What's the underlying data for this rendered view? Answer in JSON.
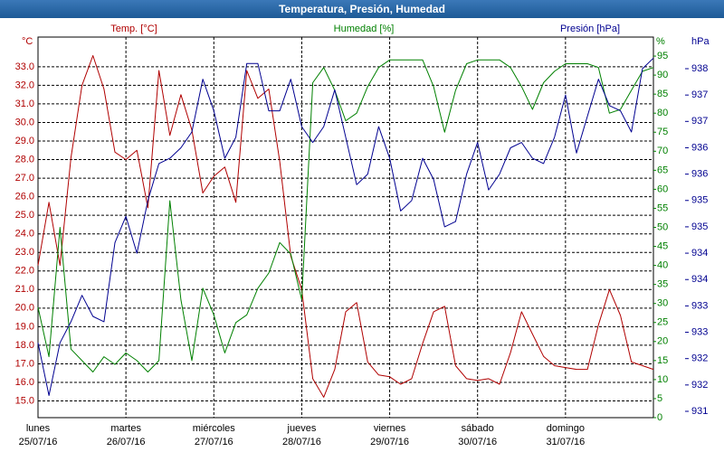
{
  "chart_data": {
    "type": "line",
    "title": "Temperatura, Presión, Humedad",
    "ylabel": "Temp. [°C]",
    "yunit": "°C",
    "y2label": "Humedad [%]",
    "y2unit": "%",
    "y3label": "Presión [hPa]",
    "y3unit": "hPa",
    "grid": true,
    "x": [
      0,
      0.125,
      0.25,
      0.375,
      0.5,
      0.625,
      0.75,
      0.875,
      1,
      1.125,
      1.25,
      1.375,
      1.5,
      1.625,
      1.75,
      1.875,
      2,
      2.125,
      2.25,
      2.375,
      2.5,
      2.625,
      2.75,
      2.875,
      3,
      3.125,
      3.25,
      3.375,
      3.5,
      3.625,
      3.75,
      3.875,
      4,
      4.125,
      4.25,
      4.375,
      4.5,
      4.625,
      4.75,
      4.875,
      5,
      5.125,
      5.25,
      5.375,
      5.5,
      5.625,
      5.75,
      5.875,
      6,
      6.125,
      6.25,
      6.375,
      6.5,
      6.625,
      6.75,
      6.875,
      7
    ],
    "xlim": [
      0,
      7
    ],
    "xticks": [
      {
        "value": 0,
        "label": "lunes",
        "sublabel": "25/07/16"
      },
      {
        "value": 1,
        "label": "martes",
        "sublabel": "26/07/16"
      },
      {
        "value": 2,
        "label": "miércoles",
        "sublabel": "27/07/16"
      },
      {
        "value": 3,
        "label": "jueves",
        "sublabel": "28/07/16"
      },
      {
        "value": 4,
        "label": "viernes",
        "sublabel": "29/07/16"
      },
      {
        "value": 5,
        "label": "sábado",
        "sublabel": "30/07/16"
      },
      {
        "value": 6,
        "label": "domingo",
        "sublabel": "31/07/16"
      }
    ],
    "ylim": [
      14.1,
      34.6
    ],
    "yticks": [
      {
        "value": 15,
        "label": "15.0"
      },
      {
        "value": 16,
        "label": "16.0"
      },
      {
        "value": 17,
        "label": "17.0"
      },
      {
        "value": 18,
        "label": "18.0"
      },
      {
        "value": 19,
        "label": "19.0"
      },
      {
        "value": 20,
        "label": "20.0"
      },
      {
        "value": 21,
        "label": "21.0"
      },
      {
        "value": 22,
        "label": "22.0"
      },
      {
        "value": 23,
        "label": "23.0"
      },
      {
        "value": 24,
        "label": "24.0"
      },
      {
        "value": 25,
        "label": "25.0"
      },
      {
        "value": 26,
        "label": "26.0"
      },
      {
        "value": 27,
        "label": "27.0"
      },
      {
        "value": 28,
        "label": "28.0"
      },
      {
        "value": 29,
        "label": "29.0"
      },
      {
        "value": 30,
        "label": "30.0"
      },
      {
        "value": 31,
        "label": "31.0"
      },
      {
        "value": 32,
        "label": "32.0"
      },
      {
        "value": 33,
        "label": "33.0"
      }
    ],
    "y2lim": [
      0,
      100
    ],
    "y2ticks": [
      0,
      5,
      10,
      15,
      20,
      25,
      30,
      35,
      40,
      45,
      50,
      55,
      60,
      65,
      70,
      75,
      80,
      85,
      90,
      95
    ],
    "y3lim": [
      930.88,
      938.1
    ],
    "y3ticks": [
      931,
      {
        "value": 931.5,
        "label": "932"
      },
      932,
      {
        "value": 932.5,
        "label": "933"
      },
      933,
      {
        "value": 933.5,
        "label": "934"
      },
      934,
      {
        "value": 934.5,
        "label": "935"
      },
      935,
      {
        "value": 935.5,
        "label": "936"
      },
      936,
      {
        "value": 936.5,
        "label": "937"
      },
      937,
      {
        "value": 937.5,
        "label": "938"
      }
    ],
    "series": [
      {
        "name": "Temp. [°C]",
        "color": "#b00000",
        "axis": "y",
        "values": [
          22.3,
          25.7,
          22.3,
          28.1,
          32.0,
          33.6,
          31.8,
          28.4,
          28.0,
          28.5,
          25.4,
          32.8,
          29.3,
          31.5,
          29.6,
          26.2,
          27.1,
          27.6,
          25.7,
          32.8,
          31.3,
          31.8,
          27.9,
          22.8,
          21.0,
          16.2,
          15.2,
          16.7,
          19.8,
          20.3,
          17.1,
          16.4,
          16.3,
          15.9,
          16.2,
          18.1,
          19.8,
          20.1,
          16.9,
          16.2,
          16.1,
          16.2,
          15.9,
          17.6,
          19.8,
          18.6,
          17.4,
          16.9,
          16.8,
          16.7,
          16.7,
          19.1,
          21.0,
          19.6,
          17.1,
          16.9,
          16.7
        ]
      },
      {
        "name": "Humedad [%]",
        "color": "#008000",
        "axis": "y2",
        "values": [
          29,
          16,
          50,
          18,
          15,
          12,
          16,
          14,
          17,
          15,
          12,
          15,
          57,
          31,
          15,
          34,
          27,
          17,
          25,
          27,
          34,
          38,
          46,
          43,
          31,
          88,
          92,
          86,
          78,
          80,
          87,
          92,
          94,
          94,
          94,
          94,
          87,
          75,
          86,
          93,
          94,
          94,
          94,
          92,
          87,
          81,
          88,
          91,
          93,
          93,
          93,
          92,
          80,
          81,
          86,
          91,
          92
        ]
      },
      {
        "name": "Presión [hPa]",
        "color": "#000090",
        "axis": "y3",
        "values": [
          932.3,
          931.3,
          932.3,
          932.7,
          933.2,
          932.8,
          932.7,
          934.2,
          934.7,
          934.0,
          935.0,
          935.7,
          935.8,
          936.0,
          936.3,
          937.3,
          936.7,
          935.8,
          936.2,
          937.6,
          937.6,
          936.7,
          936.7,
          937.3,
          936.4,
          936.1,
          936.4,
          937.1,
          936.2,
          935.3,
          935.5,
          936.4,
          935.8,
          934.8,
          935.0,
          935.8,
          935.4,
          934.5,
          934.6,
          935.5,
          936.1,
          935.2,
          935.5,
          936.0,
          936.1,
          935.8,
          935.7,
          936.2,
          937.0,
          935.9,
          936.6,
          937.3,
          936.8,
          936.7,
          936.3,
          937.5,
          937.7
        ]
      }
    ]
  }
}
